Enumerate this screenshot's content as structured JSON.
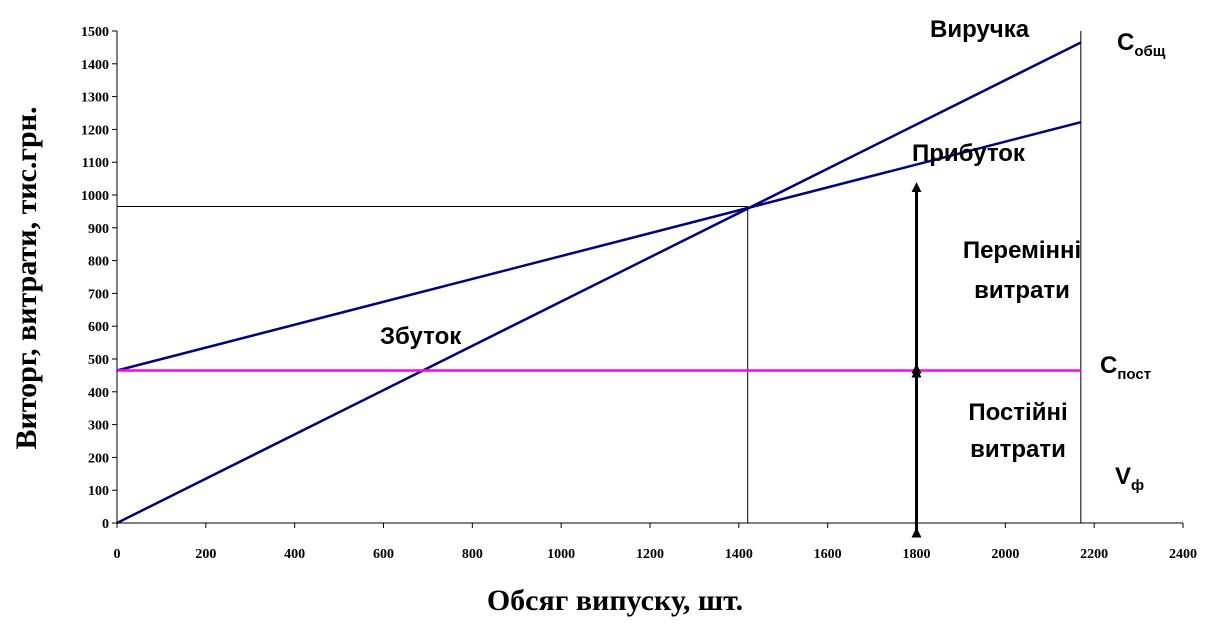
{
  "chart_data": {
    "type": "line",
    "title": "",
    "xlabel": "Обсяг випуску, шт.",
    "ylabel": "Виторг, витрати, тис.грн.",
    "xlim": [
      0,
      2400
    ],
    "ylim": [
      0,
      1500
    ],
    "x_ticks": [
      0,
      200,
      400,
      600,
      800,
      1000,
      1200,
      1400,
      1600,
      1800,
      2000,
      2200,
      2400
    ],
    "y_ticks": [
      0,
      100,
      200,
      300,
      400,
      500,
      600,
      700,
      800,
      900,
      1000,
      1100,
      1200,
      1300,
      1400,
      1500
    ],
    "grid": false,
    "legend": "none",
    "series": [
      {
        "color": "#000080",
        "x": [
          0,
          2170
        ],
        "y": [
          0,
          1465
        ]
      },
      {
        "color": "#000080",
        "x": [
          0,
          2170
        ],
        "y": [
          465,
          1222
        ]
      },
      {
        "color": "#FF00FF",
        "x": [
          0,
          2170
        ],
        "y": [
          465,
          465
        ]
      }
    ],
    "reference_lines": {
      "break_even_x": 1420,
      "break_even_y": 965,
      "actual_volume_x": 2170,
      "color": "#000000"
    },
    "arrows": {
      "x": 1800,
      "variable_costs_range": [
        465,
        1030
      ],
      "fixed_costs_range": [
        -35,
        465
      ]
    },
    "annotations": {
      "revenue": "Виручка",
      "profit": "Прибуток",
      "loss": "Збуток",
      "variable_costs_1": "Перемінні",
      "variable_costs_2": "витрати",
      "fixed_costs_1": "Постійні",
      "fixed_costs_2": "витрати",
      "total_cost_main": "C",
      "total_cost_sub": "общ",
      "fixed_cost_main": "C",
      "fixed_cost_sub": "пост",
      "volume_main": "V",
      "volume_sub": "ф"
    }
  }
}
